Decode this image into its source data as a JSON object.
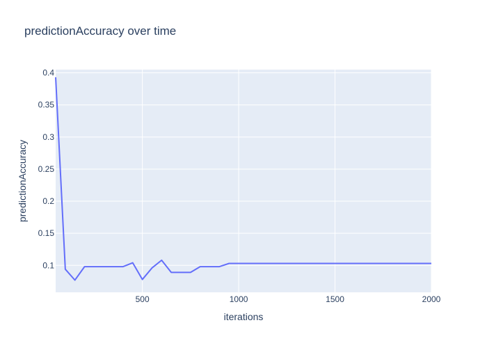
{
  "chart_data": {
    "type": "line",
    "title": "predictionAccuracy over time",
    "xlabel": "iterations",
    "ylabel": "predictionAccuracy",
    "xlim": [
      50,
      2000
    ],
    "ylim": [
      0.058,
      0.405
    ],
    "x_ticks": [
      500,
      1000,
      1500,
      2000
    ],
    "y_ticks": [
      0.1,
      0.15,
      0.2,
      0.25,
      0.3,
      0.35,
      0.4
    ],
    "grid": true,
    "line_color": "#636efa",
    "plot_bg": "#e5ecf6",
    "series": [
      {
        "x": [
          50,
          100,
          150,
          200,
          250,
          300,
          350,
          400,
          450,
          500,
          550,
          600,
          650,
          700,
          750,
          800,
          850,
          900,
          950,
          1000,
          1050,
          1100,
          1150,
          1200,
          1250,
          1300,
          1350,
          1400,
          1450,
          1500,
          1550,
          1600,
          1650,
          1700,
          1750,
          1800,
          1850,
          1900,
          1950,
          2000
        ],
        "y": [
          0.393,
          0.094,
          0.077,
          0.098,
          0.098,
          0.098,
          0.098,
          0.098,
          0.104,
          0.078,
          0.096,
          0.108,
          0.089,
          0.089,
          0.089,
          0.098,
          0.098,
          0.098,
          0.103,
          0.103,
          0.103,
          0.103,
          0.103,
          0.103,
          0.103,
          0.103,
          0.103,
          0.103,
          0.103,
          0.103,
          0.103,
          0.103,
          0.103,
          0.103,
          0.103,
          0.103,
          0.103,
          0.103,
          0.103,
          0.103
        ]
      }
    ]
  }
}
